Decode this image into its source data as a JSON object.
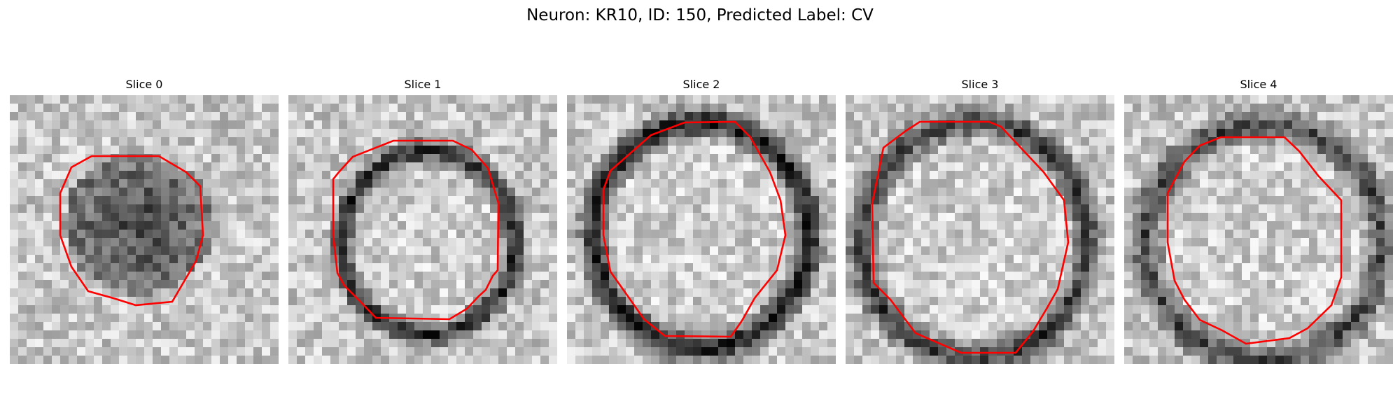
{
  "figure": {
    "title": "Neuron: KR10, ID: 150, Predicted Label: CV"
  },
  "panels": [
    {
      "title": "Slice 0",
      "seed": 11,
      "contour_color": "#ff0000"
    },
    {
      "title": "Slice 1",
      "seed": 23,
      "contour_color": "#ff0000"
    },
    {
      "title": "Slice 2",
      "seed": 37,
      "contour_color": "#ff0000"
    },
    {
      "title": "Slice 3",
      "seed": 51,
      "contour_color": "#ff0000"
    },
    {
      "title": "Slice 4",
      "seed": 67,
      "contour_color": "#ff0000"
    }
  ]
}
